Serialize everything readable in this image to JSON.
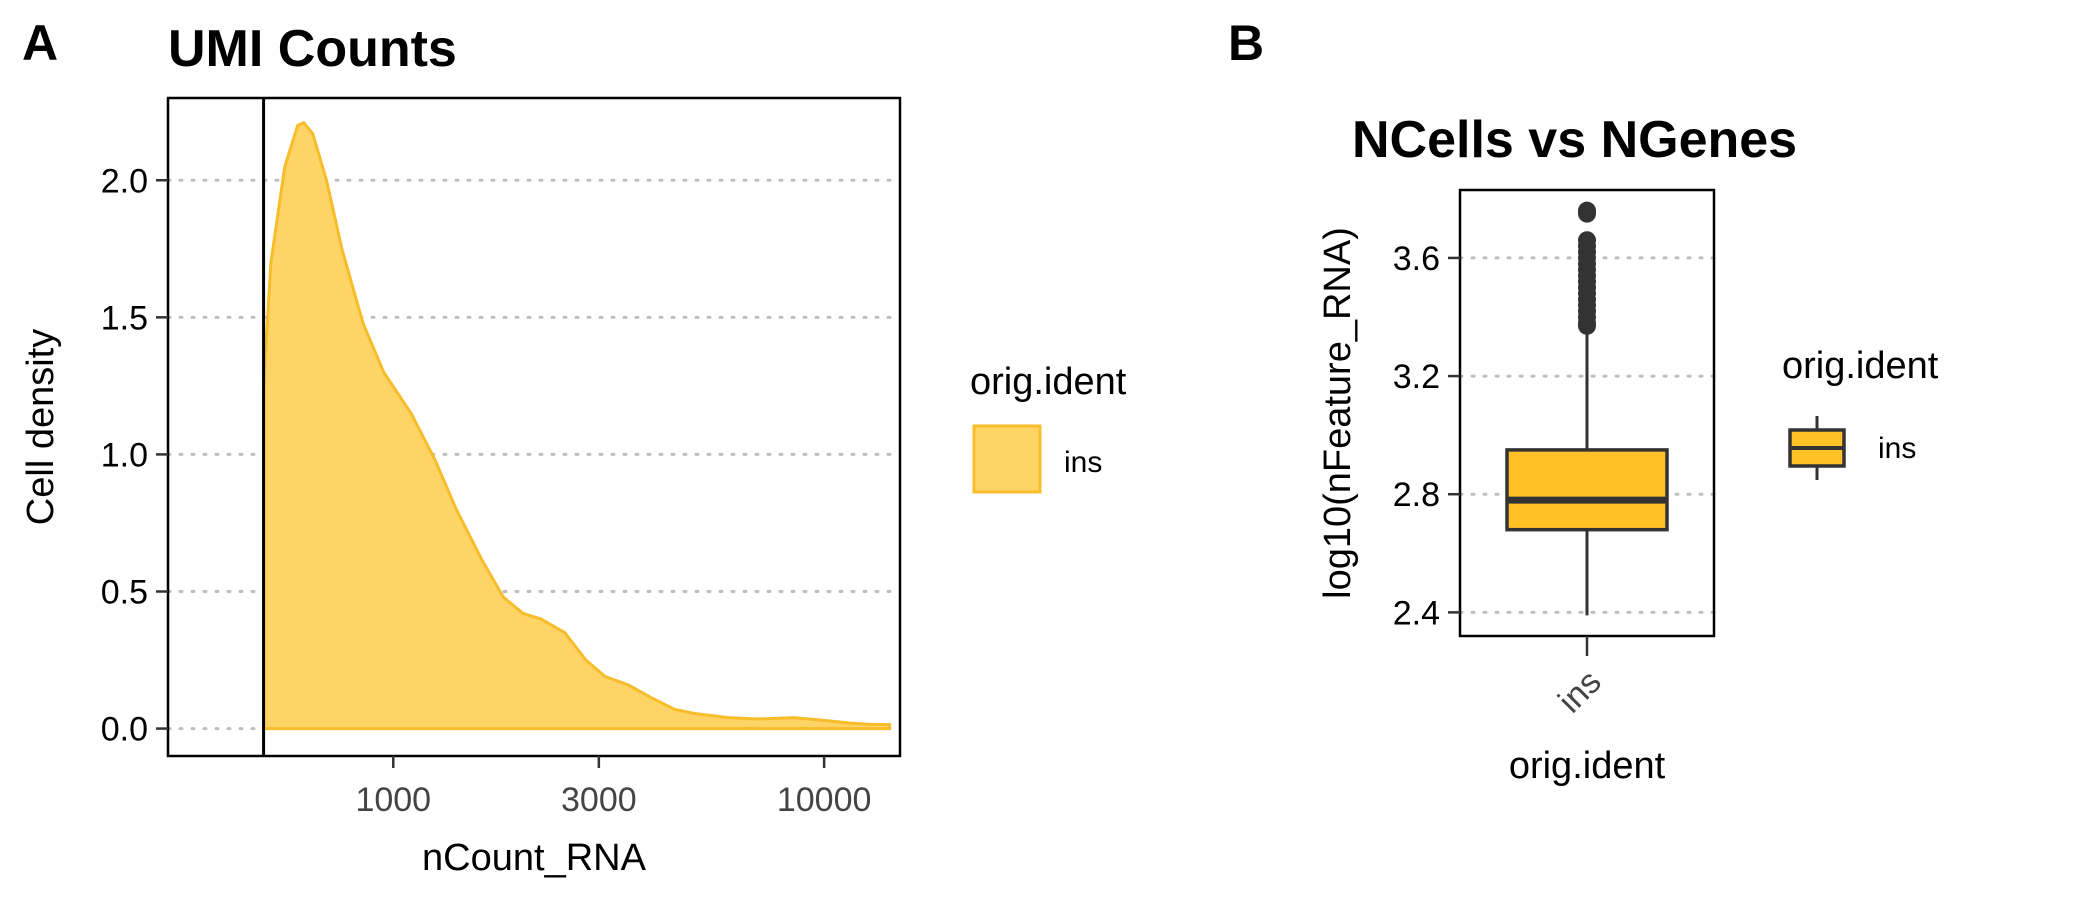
{
  "colors": {
    "fill": "#FFD466",
    "stroke": "#F7BD2A",
    "box_fill": "#FFC125",
    "dark": "#333333",
    "grid": "#BEBEBE"
  },
  "chart_data": [
    {
      "panel": "A",
      "type": "area",
      "title": "UMI Counts",
      "xlabel": "nCount_RNA",
      "ylabel": "Cell density",
      "x_scale": "log10",
      "xlim": [
        300,
        15000
      ],
      "ylim": [
        -0.1,
        2.3
      ],
      "xticks": [
        1000,
        3000,
        10000
      ],
      "xtick_labels": [
        "1000",
        "3000",
        "10000"
      ],
      "yticks": [
        0,
        0.5,
        1,
        1.5,
        2
      ],
      "ytick_labels": [
        "0.0",
        "0.5",
        "1.0",
        "1.5",
        "2.0"
      ],
      "grid": "horizontal dotted",
      "vline": 500,
      "legend": {
        "title": "orig.ident",
        "entries": [
          "ins"
        ],
        "placement": "right"
      },
      "series": [
        {
          "name": "ins",
          "x": [
            500,
            520,
            560,
            600,
            620,
            650,
            700,
            760,
            850,
            950,
            1100,
            1250,
            1400,
            1600,
            1800,
            2000,
            2200,
            2500,
            2800,
            3100,
            3500,
            4000,
            4500,
            5000,
            6000,
            7000,
            8500,
            10000,
            11500,
            13000,
            14200
          ],
          "y": [
            1.25,
            1.7,
            2.05,
            2.2,
            2.21,
            2.17,
            2.0,
            1.75,
            1.48,
            1.3,
            1.15,
            0.98,
            0.8,
            0.62,
            0.48,
            0.42,
            0.4,
            0.35,
            0.25,
            0.19,
            0.16,
            0.11,
            0.07,
            0.055,
            0.04,
            0.035,
            0.04,
            0.03,
            0.02,
            0.015,
            0.015
          ]
        }
      ]
    },
    {
      "panel": "B",
      "type": "box",
      "title": "NCells vs NGenes",
      "xlabel": "orig.ident",
      "ylabel": "log10(nFeature_RNA)",
      "ylim": [
        2.32,
        3.83
      ],
      "yticks": [
        2.4,
        2.8,
        3.2,
        3.6
      ],
      "ytick_labels": [
        "2.4",
        "2.8",
        "3.2",
        "3.6"
      ],
      "categories": [
        "ins"
      ],
      "grid": "horizontal dotted",
      "legend": {
        "title": "orig.ident",
        "entries": [
          "ins"
        ],
        "placement": "right"
      },
      "box": {
        "name": "ins",
        "whisker_low": 2.39,
        "q1": 2.68,
        "median": 2.78,
        "q3": 2.95,
        "whisker_high": 3.36,
        "outliers": [
          3.37,
          3.38,
          3.4,
          3.42,
          3.44,
          3.46,
          3.48,
          3.5,
          3.52,
          3.54,
          3.56,
          3.58,
          3.6,
          3.62,
          3.64,
          3.66,
          3.75,
          3.76
        ]
      }
    }
  ]
}
